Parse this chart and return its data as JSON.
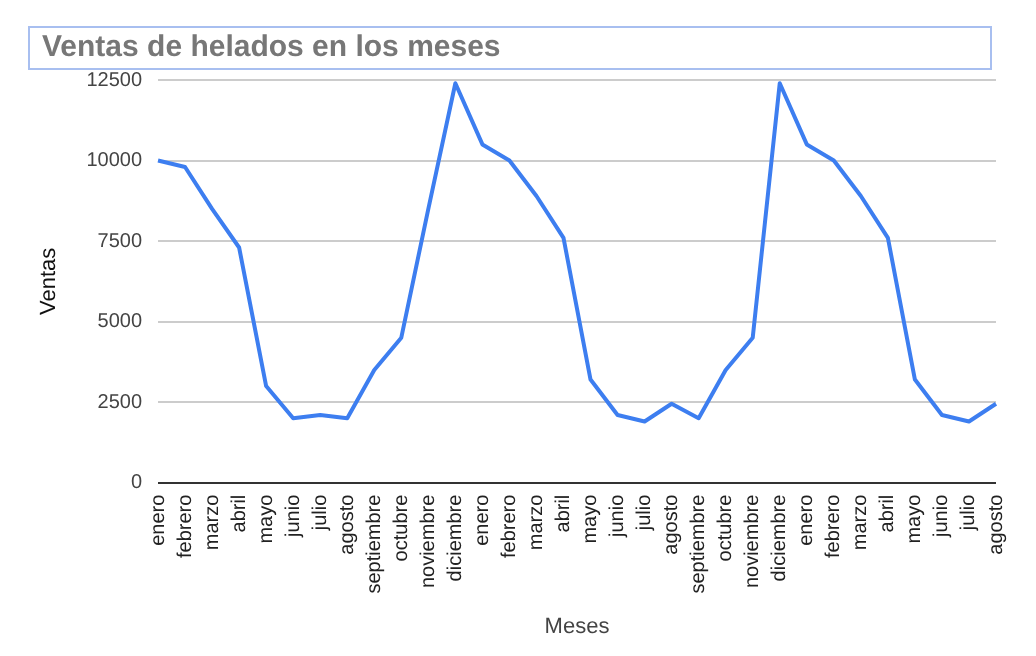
{
  "chart_data": {
    "type": "line",
    "title": "Ventas de helados en los meses",
    "xlabel": "Meses",
    "ylabel": "Ventas",
    "categories": [
      "enero",
      "febrero",
      "marzo",
      "abril",
      "mayo",
      "junio",
      "julio",
      "agosto",
      "septiembre",
      "octubre",
      "noviembre",
      "diciembre",
      "enero",
      "febrero",
      "marzo",
      "abril",
      "mayo",
      "junio",
      "julio",
      "agosto",
      "septiembre",
      "octubre",
      "noviembre",
      "diciembre",
      "enero",
      "febrero",
      "marzo",
      "abril",
      "mayo",
      "junio",
      "julio",
      "agosto"
    ],
    "series": [
      {
        "color": "#3d7ef0",
        "values": [
          10000,
          9800,
          8500,
          7300,
          3000,
          2000,
          2100,
          2000,
          3500,
          4500,
          8500,
          12400,
          10500,
          10000,
          8900,
          7600,
          3200,
          2100,
          1900,
          2450,
          2000,
          3500,
          4500,
          12400,
          10500,
          10000,
          8900,
          7600,
          3200,
          2100,
          1900,
          2450
        ]
      }
    ],
    "ylim": [
      0,
      12500
    ],
    "yticks": [
      0,
      2500,
      5000,
      7500,
      10000,
      12500
    ],
    "grid": "y",
    "legend": false,
    "marker": "none",
    "line_style": "solid"
  }
}
